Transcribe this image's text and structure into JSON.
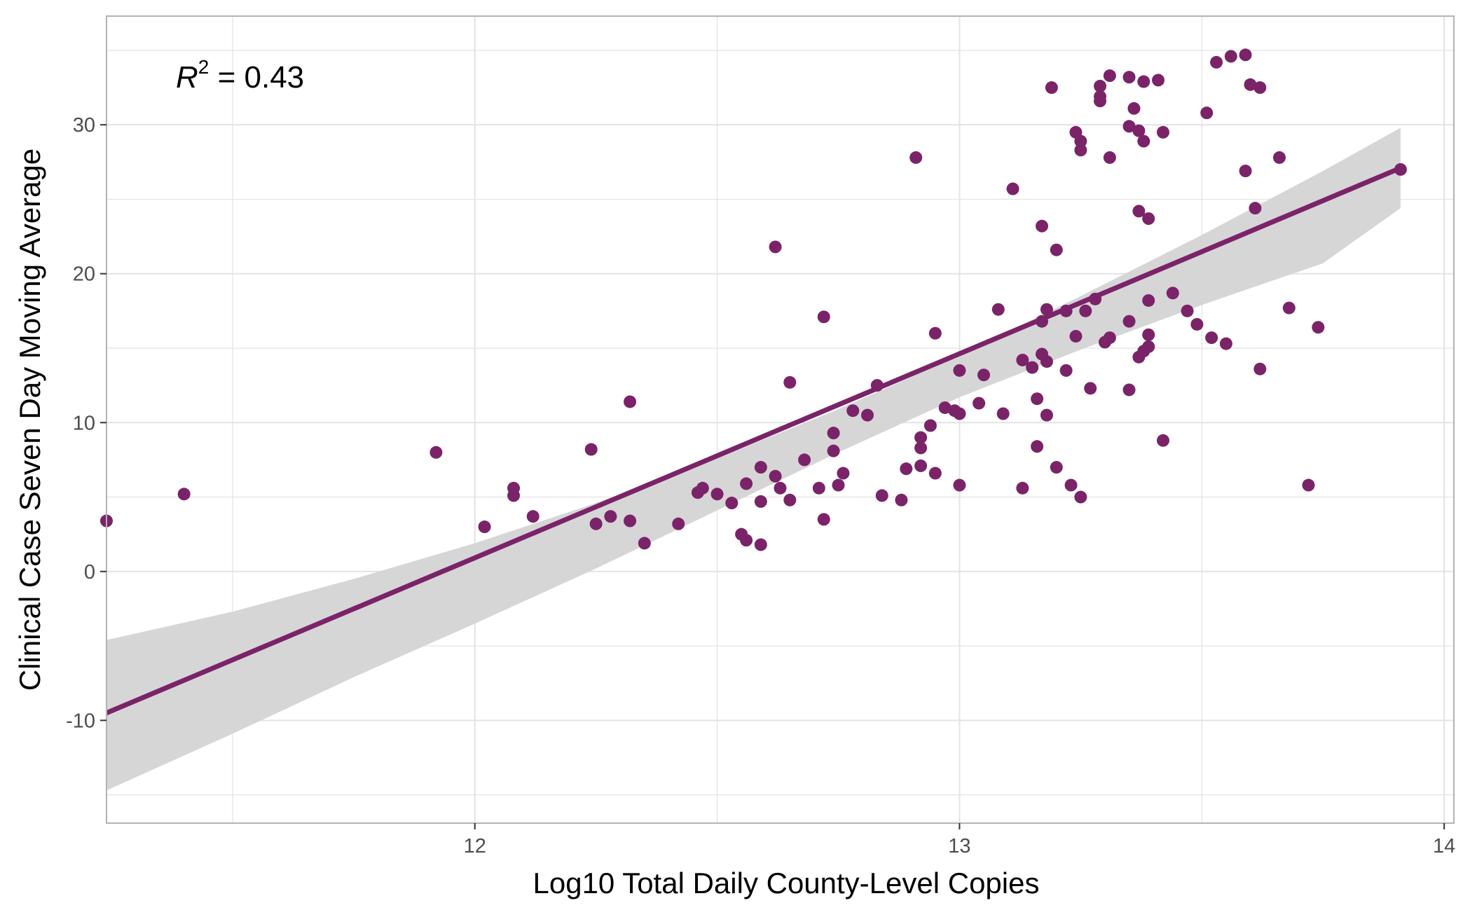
{
  "chart_data": {
    "type": "scatter",
    "title": "",
    "xlabel": "Log10 Total Daily County-Level Copies",
    "ylabel": "Clinical Case Seven Day Moving Average",
    "xlim": [
      11.24,
      14.02
    ],
    "ylim": [
      -16.9,
      37.3
    ],
    "x_ticks": [
      12,
      13,
      14
    ],
    "y_ticks": [
      -10,
      0,
      10,
      20,
      30
    ],
    "grid": true,
    "legend": "none",
    "annotation": {
      "label": "R",
      "superscript": "2",
      "text": " = 0.43"
    },
    "colors": {
      "points": "#7b2369",
      "line": "#7b2369",
      "band": "#d4d4d4",
      "grid": "#e3e3e3",
      "border": "#b3b3b3"
    },
    "regression": {
      "x_start": 11.24,
      "x_end": 13.91,
      "y_start": -9.5,
      "y_end": 27.1,
      "ci": [
        {
          "x": 11.24,
          "lo": -14.7,
          "hi": -4.6
        },
        {
          "x": 11.5,
          "lo": -10.9,
          "hi": -2.7
        },
        {
          "x": 11.75,
          "lo": -7.1,
          "hi": -0.5
        },
        {
          "x": 12.0,
          "lo": -3.5,
          "hi": 1.9
        },
        {
          "x": 12.25,
          "lo": 0.2,
          "hi": 4.6
        },
        {
          "x": 12.5,
          "lo": 4.1,
          "hi": 7.6
        },
        {
          "x": 12.75,
          "lo": 8.0,
          "hi": 10.9
        },
        {
          "x": 13.0,
          "lo": 11.7,
          "hi": 14.5
        },
        {
          "x": 13.25,
          "lo": 14.9,
          "hi": 18.5
        },
        {
          "x": 13.5,
          "lo": 17.9,
          "hi": 22.6
        },
        {
          "x": 13.75,
          "lo": 20.7,
          "hi": 26.9
        },
        {
          "x": 13.91,
          "lo": 24.4,
          "hi": 29.8
        }
      ]
    },
    "series": [
      {
        "points": [
          [
            11.24,
            3.4
          ],
          [
            11.4,
            5.2
          ],
          [
            11.92,
            8.0
          ],
          [
            12.02,
            3.0
          ],
          [
            12.08,
            5.1
          ],
          [
            12.08,
            5.6
          ],
          [
            12.12,
            3.7
          ],
          [
            12.24,
            8.2
          ],
          [
            12.25,
            3.2
          ],
          [
            12.28,
            3.7
          ],
          [
            12.32,
            11.4
          ],
          [
            12.32,
            3.4
          ],
          [
            12.35,
            1.9
          ],
          [
            12.42,
            3.2
          ],
          [
            12.46,
            5.3
          ],
          [
            12.47,
            5.6
          ],
          [
            12.5,
            5.2
          ],
          [
            12.53,
            4.6
          ],
          [
            12.55,
            2.5
          ],
          [
            12.56,
            2.1
          ],
          [
            12.56,
            5.9
          ],
          [
            12.59,
            7.0
          ],
          [
            12.59,
            4.7
          ],
          [
            12.59,
            1.8
          ],
          [
            12.62,
            21.8
          ],
          [
            12.62,
            6.4
          ],
          [
            12.63,
            5.6
          ],
          [
            12.65,
            12.7
          ],
          [
            12.65,
            4.8
          ],
          [
            12.68,
            7.5
          ],
          [
            12.71,
            5.6
          ],
          [
            12.72,
            17.1
          ],
          [
            12.72,
            3.5
          ],
          [
            12.74,
            9.3
          ],
          [
            12.74,
            8.1
          ],
          [
            12.75,
            5.8
          ],
          [
            12.76,
            6.6
          ],
          [
            12.78,
            10.8
          ],
          [
            12.81,
            10.5
          ],
          [
            12.83,
            12.5
          ],
          [
            12.84,
            5.1
          ],
          [
            12.88,
            4.8
          ],
          [
            12.89,
            6.9
          ],
          [
            12.91,
            27.8
          ],
          [
            12.92,
            9.0
          ],
          [
            12.92,
            8.3
          ],
          [
            12.92,
            7.1
          ],
          [
            12.94,
            9.8
          ],
          [
            12.95,
            6.6
          ],
          [
            12.95,
            16.0
          ],
          [
            12.97,
            11.0
          ],
          [
            12.99,
            10.8
          ],
          [
            13.0,
            13.5
          ],
          [
            13.0,
            10.6
          ],
          [
            13.0,
            5.8
          ],
          [
            13.04,
            11.3
          ],
          [
            13.05,
            13.2
          ],
          [
            13.08,
            17.6
          ],
          [
            13.09,
            10.6
          ],
          [
            13.11,
            25.7
          ],
          [
            13.13,
            14.2
          ],
          [
            13.13,
            5.6
          ],
          [
            13.15,
            13.7
          ],
          [
            13.16,
            11.6
          ],
          [
            13.16,
            8.4
          ],
          [
            13.17,
            14.6
          ],
          [
            13.17,
            16.8
          ],
          [
            13.17,
            23.2
          ],
          [
            13.18,
            14.1
          ],
          [
            13.18,
            17.6
          ],
          [
            13.18,
            10.5
          ],
          [
            13.19,
            32.5
          ],
          [
            13.2,
            21.6
          ],
          [
            13.2,
            7.0
          ],
          [
            13.22,
            13.5
          ],
          [
            13.22,
            17.5
          ],
          [
            13.23,
            5.8
          ],
          [
            13.24,
            29.5
          ],
          [
            13.24,
            15.8
          ],
          [
            13.25,
            28.9
          ],
          [
            13.25,
            28.3
          ],
          [
            13.25,
            5.0
          ],
          [
            13.26,
            17.5
          ],
          [
            13.27,
            12.3
          ],
          [
            13.28,
            18.3
          ],
          [
            13.29,
            32.6
          ],
          [
            13.29,
            31.9
          ],
          [
            13.29,
            31.6
          ],
          [
            13.3,
            15.4
          ],
          [
            13.31,
            15.7
          ],
          [
            13.31,
            33.3
          ],
          [
            13.31,
            27.8
          ],
          [
            13.35,
            33.2
          ],
          [
            13.35,
            29.9
          ],
          [
            13.35,
            16.8
          ],
          [
            13.35,
            12.2
          ],
          [
            13.36,
            31.1
          ],
          [
            13.37,
            29.6
          ],
          [
            13.37,
            24.2
          ],
          [
            13.37,
            14.4
          ],
          [
            13.38,
            32.9
          ],
          [
            13.38,
            28.9
          ],
          [
            13.38,
            14.8
          ],
          [
            13.39,
            15.9
          ],
          [
            13.39,
            18.2
          ],
          [
            13.39,
            15.1
          ],
          [
            13.39,
            23.7
          ],
          [
            13.41,
            33.0
          ],
          [
            13.42,
            8.8
          ],
          [
            13.42,
            29.5
          ],
          [
            13.44,
            18.7
          ],
          [
            13.47,
            17.5
          ],
          [
            13.49,
            16.6
          ],
          [
            13.51,
            30.8
          ],
          [
            13.52,
            15.7
          ],
          [
            13.53,
            34.2
          ],
          [
            13.55,
            15.3
          ],
          [
            13.56,
            34.6
          ],
          [
            13.59,
            34.7
          ],
          [
            13.59,
            26.9
          ],
          [
            13.6,
            32.7
          ],
          [
            13.61,
            24.4
          ],
          [
            13.62,
            32.5
          ],
          [
            13.62,
            13.6
          ],
          [
            13.66,
            27.8
          ],
          [
            13.68,
            17.7
          ],
          [
            13.72,
            5.8
          ],
          [
            13.74,
            16.4
          ],
          [
            13.91,
            27.0
          ]
        ]
      }
    ]
  }
}
